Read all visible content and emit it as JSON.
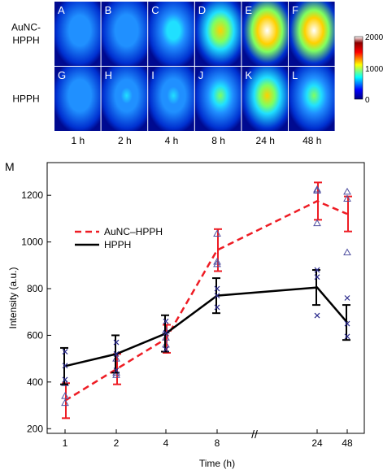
{
  "figure": {
    "row_labels": [
      "AuNC-\nHPPH",
      "HPPH"
    ],
    "rows": [
      {
        "label_lines": [
          "AuNC-",
          "HPPH"
        ],
        "panels": [
          {
            "letter": "A",
            "signal": 0.18
          },
          {
            "letter": "B",
            "signal": 0.28
          },
          {
            "letter": "C",
            "signal": 0.4
          },
          {
            "letter": "D",
            "signal": 0.72
          },
          {
            "letter": "E",
            "signal": 1.0
          },
          {
            "letter": "F",
            "signal": 0.92
          }
        ]
      },
      {
        "label_lines": [
          "HPPH"
        ],
        "panels": [
          {
            "letter": "G",
            "signal": 0.3
          },
          {
            "letter": "H",
            "signal": 0.32
          },
          {
            "letter": "I",
            "signal": 0.38
          },
          {
            "letter": "J",
            "signal": 0.5
          },
          {
            "letter": "K",
            "signal": 0.62
          },
          {
            "letter": "L",
            "signal": 0.55
          }
        ]
      }
    ],
    "time_labels": [
      "1 h",
      "2 h",
      "4 h",
      "8 h",
      "24 h",
      "48 h"
    ],
    "colorbar": {
      "max_label": "2000",
      "mid_label": "1000",
      "min_label": "0"
    },
    "chart_panel_letter": "M"
  },
  "chart_data": {
    "type": "line",
    "xlabel": "Time (h)",
    "ylabel": "Intensity (a.u.)",
    "categories": [
      "1",
      "2",
      "4",
      "8",
      "24",
      "48"
    ],
    "axis_break_symbol": "//",
    "ylim": [
      180,
      1340
    ],
    "yticks": [
      200,
      400,
      600,
      800,
      1000,
      1200
    ],
    "legend": {
      "placement": "top-left"
    },
    "series": [
      {
        "name": "AuNC–HPPH",
        "color": "#ee1c24",
        "style": "dashed",
        "values": [
          320,
          455,
          585,
          965,
          1175,
          1120
        ],
        "errors": [
          75,
          65,
          60,
          90,
          80,
          75
        ],
        "markers": "triangle",
        "marker_color": "#4f4fa0",
        "points": [
          [
            310,
            340,
            395
          ],
          [
            430,
            440,
            500
          ],
          [
            560,
            590,
            620
          ],
          [
            905,
            915,
            1035
          ],
          [
            1080,
            1225,
            1220
          ],
          [
            955,
            1185,
            1215
          ]
        ]
      },
      {
        "name": "HPPH",
        "color": "#000000",
        "style": "solid",
        "values": [
          468,
          520,
          608,
          770,
          805,
          655
        ],
        "errors": [
          78,
          80,
          78,
          75,
          75,
          75
        ],
        "markers": "x",
        "marker_color": "#2b2b8c",
        "points": [
          [
            410,
            470,
            530
          ],
          [
            450,
            520,
            570
          ],
          [
            540,
            610,
            660
          ],
          [
            720,
            770,
            800
          ],
          [
            685,
            850,
            880
          ],
          [
            595,
            650,
            760
          ]
        ]
      }
    ]
  }
}
